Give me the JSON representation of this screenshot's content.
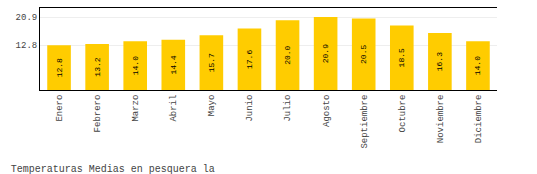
{
  "chart_data": {
    "type": "bar",
    "title": "Temperaturas Medias en pesquera la",
    "categories": [
      "Enero",
      "Febrero",
      "Marzo",
      "Abril",
      "Mayo",
      "Junio",
      "Julio",
      "Agosto",
      "Septiembre",
      "Octubre",
      "Noviembre",
      "Diciembre"
    ],
    "values": [
      12.8,
      13.2,
      14.0,
      14.4,
      15.7,
      17.6,
      20.0,
      20.9,
      20.5,
      18.5,
      16.3,
      14.0
    ],
    "value_labels": [
      "12.8",
      "13.2",
      "14.0",
      "14.4",
      "15.7",
      "17.6",
      "20.0",
      "20.9",
      "20.5",
      "18.5",
      "16.3",
      "14.0"
    ],
    "color": "#FFCC00",
    "ylim": [
      0,
      23.5
    ],
    "yticks": [
      12.8,
      20.9
    ],
    "y2lim": [
      0,
      23.5
    ],
    "y2ticks": [
      12.8,
      20.9
    ],
    "grid": true,
    "data_labels": true
  }
}
